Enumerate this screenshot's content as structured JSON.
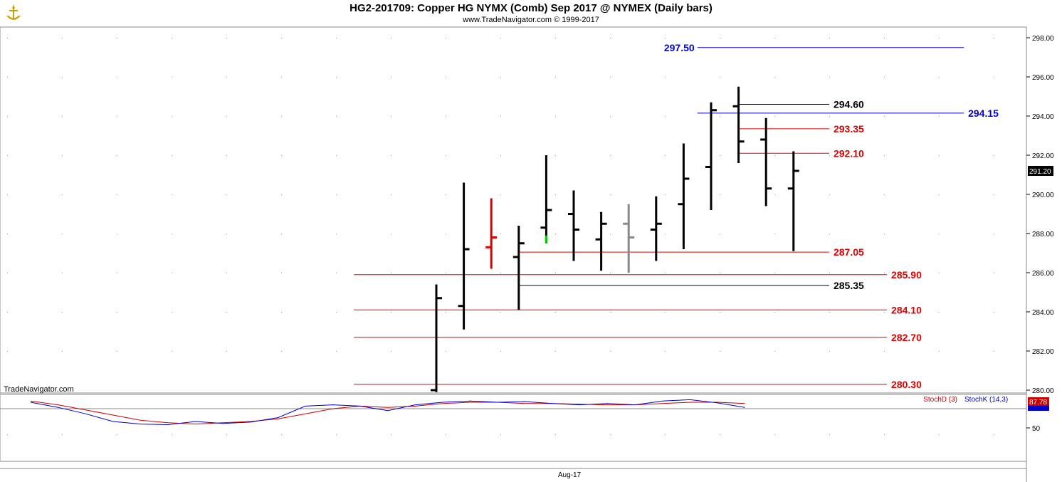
{
  "header": {
    "title": "HG2-201709:  Copper HG NYMX (Comb) Sep 2017 @ NYMEX  (Daily bars)",
    "copyright": "www.TradeNavigator.com © 1999-2017"
  },
  "watermark": "TradeNavigator.com",
  "colors": {
    "up": "#000000",
    "red": "#e00000",
    "gray": "#888888",
    "blue": "#0000dd",
    "green": "#00cc00",
    "stoch_d": "#cc0000",
    "stoch_k": "#0000cc"
  },
  "chart_data": [
    {
      "type": "ohlc",
      "price_axis": {
        "min": 280,
        "max": 298,
        "ticks": [
          "280.00",
          "282.00",
          "284.00",
          "286.00",
          "288.00",
          "290.00",
          "292.00",
          "294.00",
          "296.00",
          "298.00"
        ]
      },
      "last_price": "291.20",
      "bars": [
        {
          "o": 280.0,
          "h": 285.4,
          "l": 279.9,
          "c": 284.7,
          "color": "black"
        },
        {
          "o": 284.3,
          "h": 290.6,
          "l": 283.1,
          "c": 287.2,
          "color": "black"
        },
        {
          "o": 287.3,
          "h": 289.8,
          "l": 286.2,
          "c": 287.8,
          "color": "red"
        },
        {
          "o": 286.8,
          "h": 288.4,
          "l": 284.1,
          "c": 287.5,
          "color": "black"
        },
        {
          "o": 288.3,
          "h": 292.0,
          "l": 287.5,
          "c": 289.2,
          "color": "black"
        },
        {
          "o": 289.0,
          "h": 290.2,
          "l": 286.6,
          "c": 288.2,
          "color": "black"
        },
        {
          "o": 287.7,
          "h": 289.1,
          "l": 286.1,
          "c": 288.5,
          "color": "black"
        },
        {
          "o": 288.5,
          "h": 289.5,
          "l": 286.0,
          "c": 287.8,
          "color": "gray"
        },
        {
          "o": 288.2,
          "h": 289.9,
          "l": 286.6,
          "c": 288.5,
          "color": "black"
        },
        {
          "o": 289.5,
          "h": 292.6,
          "l": 287.2,
          "c": 290.8,
          "color": "black"
        },
        {
          "o": 291.4,
          "h": 294.7,
          "l": 289.2,
          "c": 294.3,
          "color": "black"
        },
        {
          "o": 294.5,
          "h": 295.5,
          "l": 291.6,
          "c": 292.7,
          "color": "black"
        },
        {
          "o": 292.8,
          "h": 293.9,
          "l": 289.4,
          "c": 290.3,
          "color": "black"
        },
        {
          "o": 290.3,
          "h": 292.2,
          "l": 287.1,
          "c": 291.2,
          "color": "black"
        }
      ],
      "levels": [
        {
          "value": 297.5,
          "label": "297.50",
          "color": "blue",
          "from_bar": 9.5,
          "to_bar": 19.2,
          "label_side": "left"
        },
        {
          "value": 294.6,
          "label": "294.60",
          "color": "black",
          "from_bar": 11,
          "to_bar": 14.3,
          "label_side": "right"
        },
        {
          "value": 294.15,
          "label": "294.15",
          "color": "blue",
          "from_bar": 9.5,
          "to_bar": 19.2,
          "label_side": "right"
        },
        {
          "value": 293.35,
          "label": "293.35",
          "color": "red",
          "from_bar": 11,
          "to_bar": 14.3,
          "label_side": "right"
        },
        {
          "value": 292.1,
          "label": "292.10",
          "color": "red",
          "from_bar": 11,
          "to_bar": 14.3,
          "label_side": "right"
        },
        {
          "value": 287.05,
          "label": "287.05",
          "color": "red",
          "from_bar": 3,
          "to_bar": 14.3,
          "label_side": "right"
        },
        {
          "value": 285.9,
          "label": "285.90",
          "color": "red",
          "from_bar": -3,
          "to_bar": 16.4,
          "label_side": "right"
        },
        {
          "value": 285.35,
          "label": "285.35",
          "color": "black",
          "from_bar": 3,
          "to_bar": 14.3,
          "label_side": "right"
        },
        {
          "value": 284.1,
          "label": "284.10",
          "color": "red",
          "from_bar": -3,
          "to_bar": 16.4,
          "label_side": "right"
        },
        {
          "value": 282.7,
          "label": "282.70",
          "color": "red",
          "from_bar": -3,
          "to_bar": 16.4,
          "label_side": "right"
        },
        {
          "value": 280.3,
          "label": "280.30",
          "color": "red",
          "from_bar": -3,
          "to_bar": 16.4,
          "label_side": "right"
        }
      ]
    },
    {
      "type": "line",
      "title": "",
      "range": [
        0,
        100
      ],
      "tick_labels": [
        "50"
      ],
      "last_value": "87.78",
      "legend": [
        "StochD (3)",
        "StochK (14,3)"
      ],
      "series": [
        {
          "name": "StochD (3)",
          "values": [
            92,
            86,
            78,
            70,
            62,
            58,
            56,
            58,
            60,
            64,
            72,
            80,
            84,
            82,
            84,
            88,
            90,
            90,
            88,
            88,
            87,
            86,
            86,
            88,
            90,
            90,
            88
          ]
        },
        {
          "name": "StochK (14,3)",
          "values": [
            90,
            82,
            72,
            60,
            56,
            55,
            60,
            57,
            59,
            66,
            84,
            86,
            84,
            77,
            86,
            90,
            92,
            90,
            91,
            88,
            86,
            88,
            86,
            92,
            94,
            89,
            82
          ]
        }
      ]
    }
  ],
  "x_axis": {
    "label": "Aug-17"
  }
}
